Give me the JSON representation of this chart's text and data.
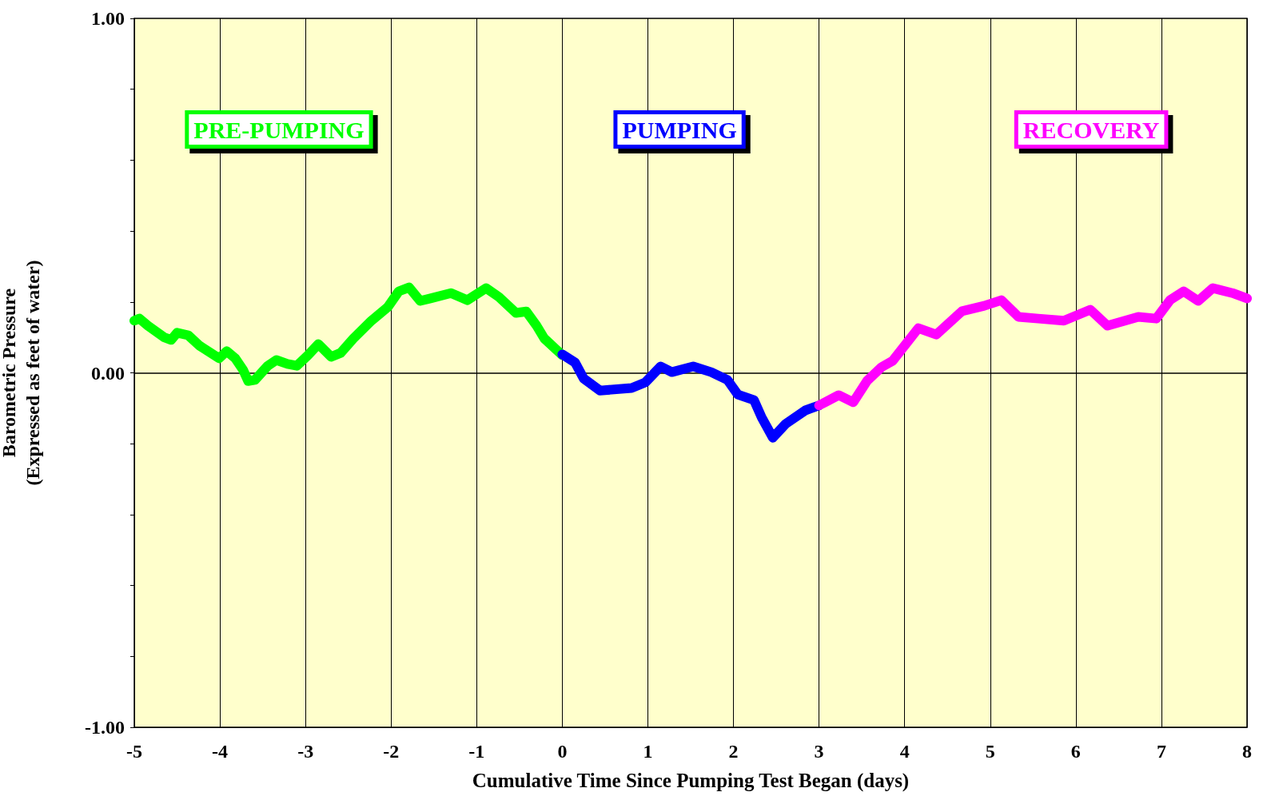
{
  "chart_data": {
    "type": "line",
    "xlabel": "Cumulative Time Since Pumping Test Began (days)",
    "ylabel": "Barometric Pressure\n(Expressed as feet of water)",
    "xlim": [
      -5,
      8
    ],
    "xticks": [
      -5,
      -4,
      -3,
      -2,
      -1,
      0,
      1,
      2,
      3,
      4,
      5,
      6,
      7,
      8
    ],
    "ylim": [
      -1,
      1
    ],
    "yticks": [
      {
        "value": -1,
        "label": "-1.00"
      },
      {
        "value": -0.8,
        "label": null
      },
      {
        "value": -0.6,
        "label": null
      },
      {
        "value": -0.4,
        "label": null
      },
      {
        "value": -0.2,
        "label": null
      },
      {
        "value": 0,
        "label": "0.00"
      },
      {
        "value": 0.2,
        "label": null
      },
      {
        "value": 0.4,
        "label": null
      },
      {
        "value": 0.6,
        "label": null
      },
      {
        "value": 0.8,
        "label": null
      },
      {
        "value": 1,
        "label": "1.00"
      }
    ],
    "grid": "x",
    "legend": false,
    "marker": "none",
    "line_style": "solid",
    "ref_lines": [
      {
        "axis": "y",
        "value": 0,
        "color": "#000000"
      }
    ],
    "series": [
      {
        "name": "PRE-PUMPING",
        "color": "#00ff00",
        "x": [
          -5.0,
          -4.94,
          -4.84,
          -4.65,
          -4.57,
          -4.5,
          -4.37,
          -4.24,
          -4.01,
          -3.92,
          -3.82,
          -3.73,
          -3.67,
          -3.59,
          -3.44,
          -3.34,
          -3.21,
          -3.1,
          -2.97,
          -2.85,
          -2.7,
          -2.59,
          -2.44,
          -2.23,
          -2.04,
          -1.91,
          -1.79,
          -1.66,
          -1.54,
          -1.3,
          -1.11,
          -0.89,
          -0.74,
          -0.54,
          -0.42,
          -0.3,
          -0.21,
          0.0
        ],
        "values": [
          0.147,
          0.153,
          0.133,
          0.1,
          0.093,
          0.113,
          0.106,
          0.077,
          0.041,
          0.061,
          0.041,
          0.009,
          -0.023,
          -0.02,
          0.02,
          0.036,
          0.025,
          0.02,
          0.05,
          0.081,
          0.045,
          0.056,
          0.097,
          0.147,
          0.185,
          0.23,
          0.241,
          0.203,
          0.21,
          0.225,
          0.205,
          0.239,
          0.214,
          0.169,
          0.173,
          0.133,
          0.097,
          0.05
        ]
      },
      {
        "name": "PUMPING",
        "color": "#0000ff",
        "x": [
          0.0,
          0.15,
          0.25,
          0.44,
          0.81,
          0.97,
          1.15,
          1.28,
          1.53,
          1.74,
          1.93,
          2.05,
          2.24,
          2.33,
          2.46,
          2.61,
          2.84,
          3.0
        ],
        "values": [
          0.052,
          0.029,
          -0.016,
          -0.05,
          -0.043,
          -0.027,
          0.018,
          0.002,
          0.018,
          0.002,
          -0.02,
          -0.061,
          -0.077,
          -0.126,
          -0.183,
          -0.144,
          -0.106,
          -0.092
        ]
      },
      {
        "name": "RECOVERY",
        "color": "#ff00ff",
        "x": [
          3.0,
          3.23,
          3.4,
          3.56,
          3.73,
          3.86,
          4.16,
          4.37,
          4.67,
          4.93,
          5.13,
          5.33,
          5.56,
          5.86,
          6.17,
          6.37,
          6.73,
          6.94,
          7.1,
          7.26,
          7.43,
          7.6,
          7.83,
          8.0
        ],
        "values": [
          -0.092,
          -0.063,
          -0.083,
          -0.023,
          0.016,
          0.034,
          0.126,
          0.108,
          0.174,
          0.189,
          0.205,
          0.158,
          0.153,
          0.147,
          0.178,
          0.133,
          0.158,
          0.153,
          0.205,
          0.23,
          0.203,
          0.239,
          0.225,
          0.21
        ]
      }
    ]
  }
}
